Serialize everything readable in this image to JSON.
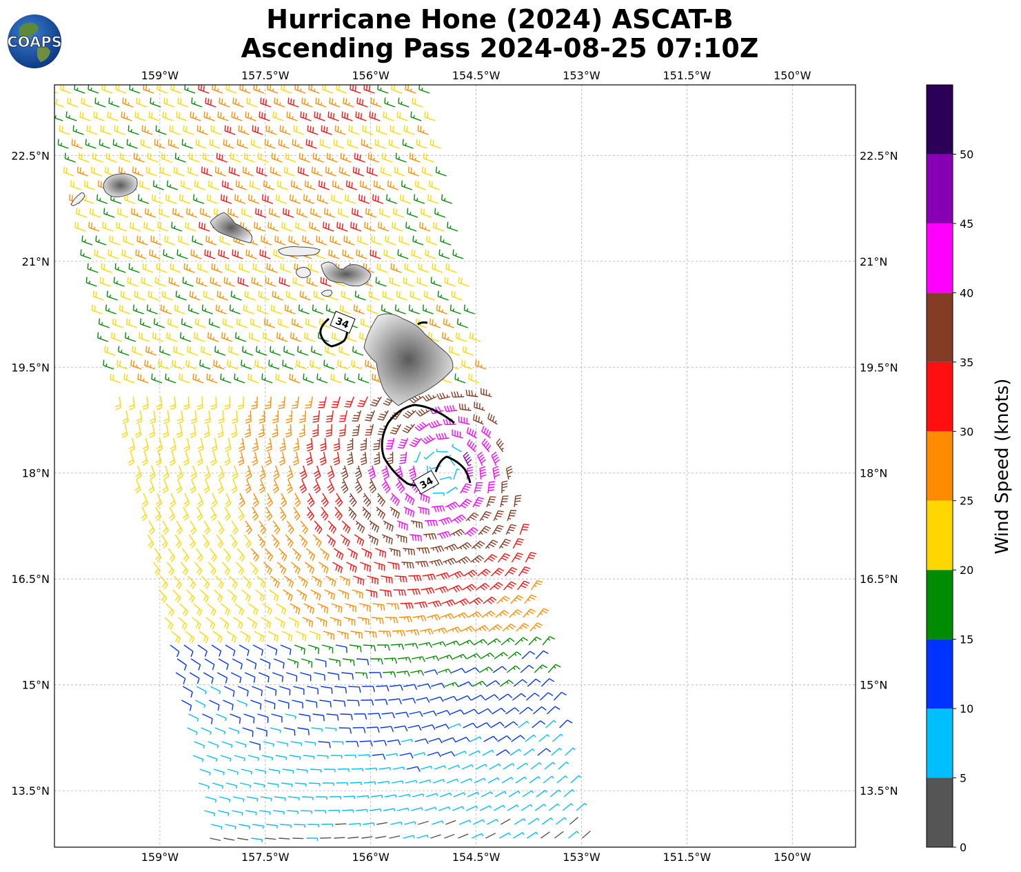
{
  "title": {
    "line1": "Hurricane Hone (2024) ASCAT-B",
    "line2": "Ascending Pass 2024-08-25 07:10Z"
  },
  "logo": {
    "text": "COAPS"
  },
  "map": {
    "lon_ticks": [
      "159°W",
      "157.5°W",
      "156°W",
      "154.5°W",
      "153°W",
      "151.5°W",
      "150°W"
    ],
    "lon_values": [
      -159,
      -157.5,
      -156,
      -154.5,
      -153,
      -151.5,
      -150
    ],
    "lat_ticks": [
      "22.5°N",
      "21°N",
      "19.5°N",
      "18°N",
      "16.5°N",
      "15°N",
      "13.5°N"
    ],
    "lat_values": [
      22.5,
      21,
      19.5,
      18,
      16.5,
      15,
      13.5
    ],
    "extent": {
      "lon": [
        -160.5,
        -149.1
      ],
      "lat": [
        12.7,
        23.5
      ]
    },
    "gridlines": true,
    "islands": [
      "Kauai",
      "Oahu",
      "Molokai",
      "Lanai",
      "Maui",
      "Kahoolawe",
      "Hawaii"
    ],
    "contour_label": "34",
    "storm_center": {
      "lon": -155.0,
      "lat": 18.05
    }
  },
  "colorbar": {
    "label": "Wind Speed (knots)",
    "ticks": [
      "0",
      "5",
      "10",
      "15",
      "20",
      "25",
      "30",
      "35",
      "40",
      "45",
      "50"
    ],
    "bins": [
      {
        "range": [
          0,
          5
        ],
        "color": "#555555"
      },
      {
        "range": [
          5,
          10
        ],
        "color": "#00bfff"
      },
      {
        "range": [
          10,
          15
        ],
        "color": "#0033ff"
      },
      {
        "range": [
          15,
          20
        ],
        "color": "#008c00"
      },
      {
        "range": [
          20,
          25
        ],
        "color": "#ffd700"
      },
      {
        "range": [
          25,
          30
        ],
        "color": "#ff8c00"
      },
      {
        "range": [
          30,
          35
        ],
        "color": "#ff0f0f"
      },
      {
        "range": [
          35,
          40
        ],
        "color": "#843c24"
      },
      {
        "range": [
          40,
          45
        ],
        "color": "#ff00ff"
      },
      {
        "range": [
          45,
          50
        ],
        "color": "#8800b3"
      },
      {
        "range": [
          50,
          55
        ],
        "color": "#2b0057"
      }
    ]
  }
}
